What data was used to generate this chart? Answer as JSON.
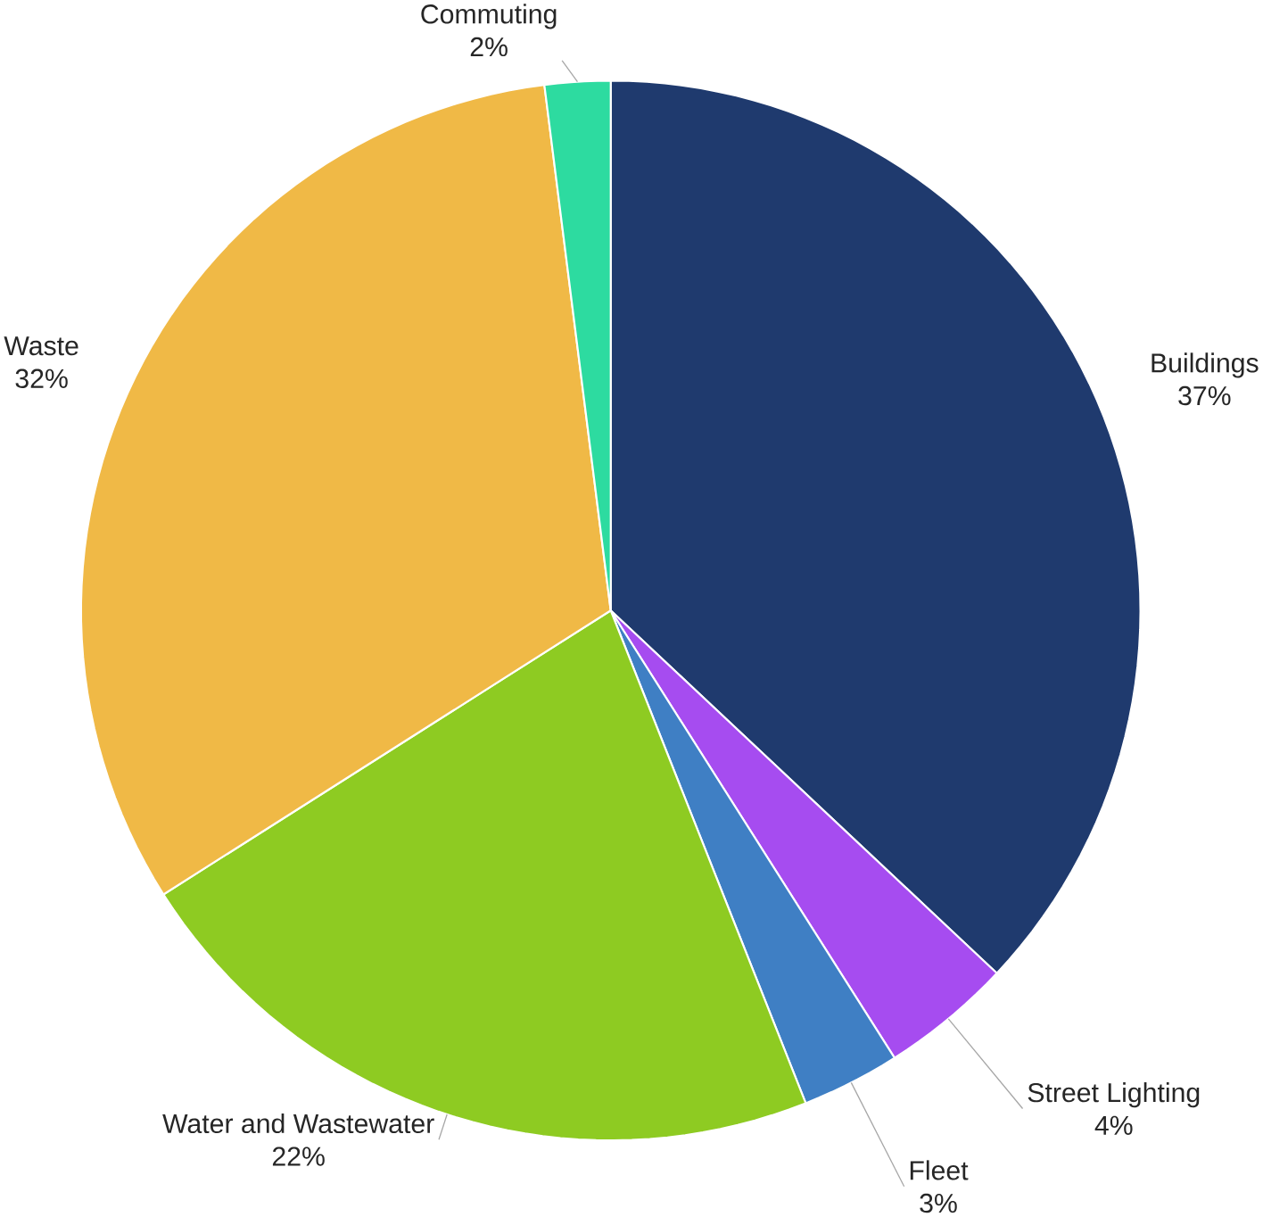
{
  "chart_data": {
    "type": "pie",
    "categories": [
      "Buildings",
      "Street Lighting",
      "Fleet",
      "Water and Wastewater",
      "Waste",
      "Commuting"
    ],
    "values": [
      37,
      4,
      3,
      22,
      32,
      2
    ],
    "value_labels": [
      "37%",
      "4%",
      "3%",
      "22%",
      "32%",
      "2%"
    ],
    "colors": [
      "#1f3a6e",
      "#a64cf0",
      "#3f7fc4",
      "#8ecb22",
      "#f0b946",
      "#2ddba0"
    ]
  }
}
